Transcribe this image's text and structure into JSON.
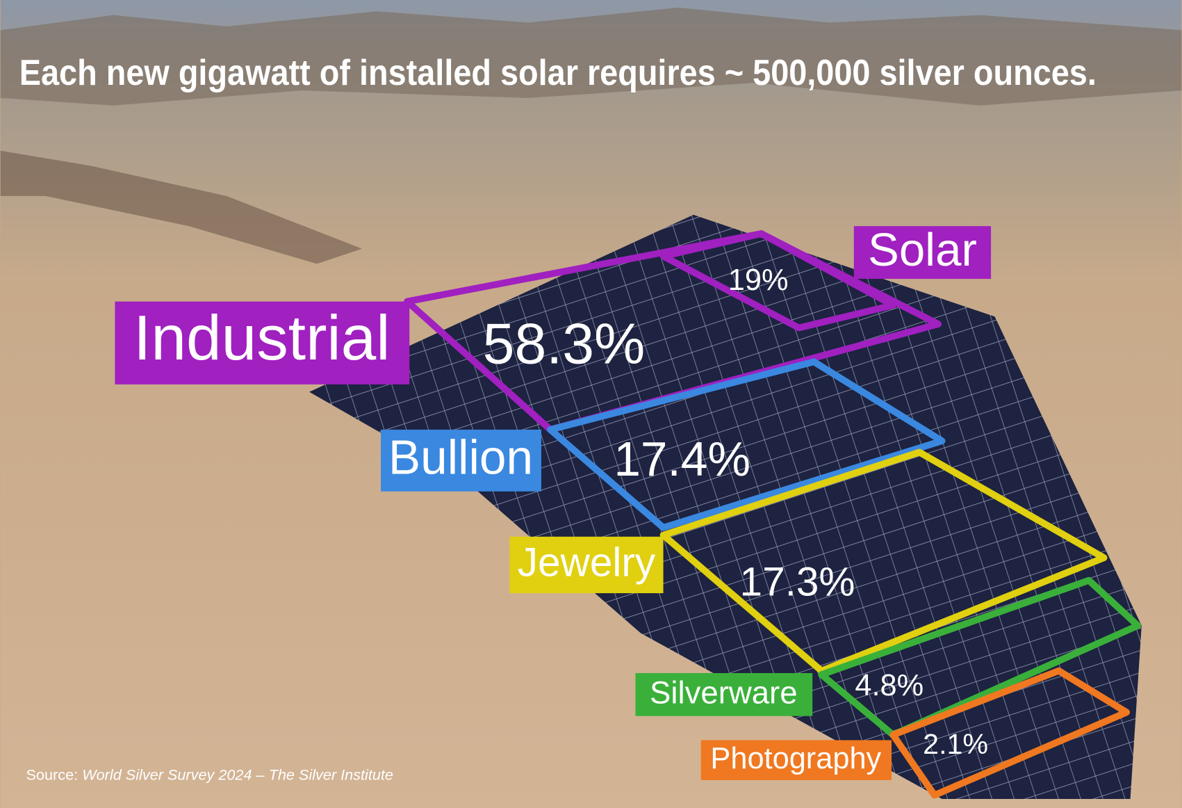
{
  "header": {
    "title": "Each new gigawatt of installed solar requires ~ 500,000 silver ounces."
  },
  "segments": [
    {
      "label": "Industrial",
      "value": "58.3%"
    },
    {
      "label": "Solar",
      "value": "19%"
    },
    {
      "label": "Bullion",
      "value": "17.4%"
    },
    {
      "label": "Jewelry",
      "value": "17.3%"
    },
    {
      "label": "Silverware",
      "value": "4.8%"
    },
    {
      "label": "Photography",
      "value": "2.1%"
    }
  ],
  "source": {
    "prefix": "Source:",
    "text": "World Silver Survey 2024 – The Silver Institute"
  }
}
